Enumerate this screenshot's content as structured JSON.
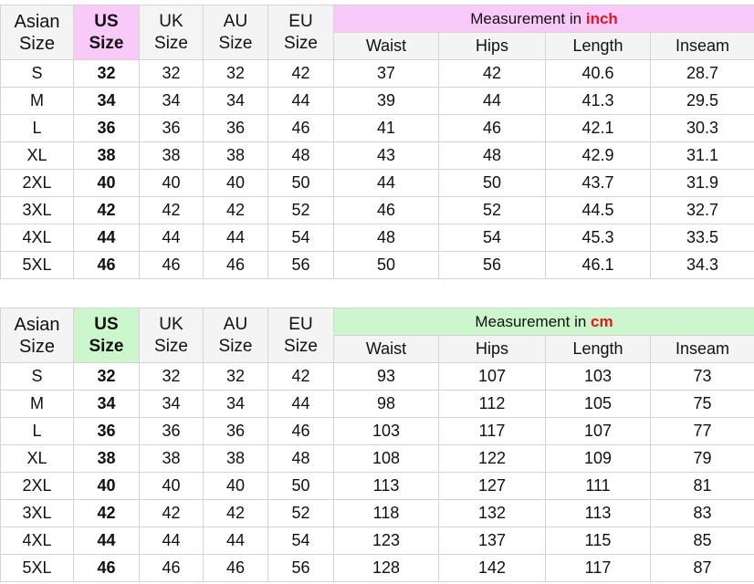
{
  "tables": [
    {
      "headers": [
        "Asian Size",
        "US Size",
        "UK Size",
        "AU Size",
        "EU Size"
      ],
      "measurement_prefix": "Measurement in",
      "unit": "inch",
      "subheaders": [
        "Waist",
        "Hips",
        "Length",
        "Inseam"
      ],
      "rows": [
        [
          "S",
          32,
          32,
          32,
          42,
          37,
          42,
          40.6,
          28.7
        ],
        [
          "M",
          34,
          34,
          34,
          44,
          39,
          44,
          41.3,
          29.5
        ],
        [
          "L",
          36,
          36,
          36,
          46,
          41,
          46,
          42.1,
          30.3
        ],
        [
          "XL",
          38,
          38,
          38,
          48,
          43,
          48,
          42.9,
          31.1
        ],
        [
          "2XL",
          40,
          40,
          40,
          50,
          44,
          50,
          43.7,
          31.9
        ],
        [
          "3XL",
          42,
          42,
          42,
          52,
          46,
          52,
          44.5,
          32.7
        ],
        [
          "4XL",
          44,
          44,
          44,
          54,
          48,
          54,
          45.3,
          33.5
        ],
        [
          "5XL",
          46,
          46,
          46,
          56,
          50,
          56,
          46.1,
          34.3
        ]
      ]
    },
    {
      "headers": [
        "Asian Size",
        "US Size",
        "UK Size",
        "AU Size",
        "EU Size"
      ],
      "measurement_prefix": "Measurement in",
      "unit": "cm",
      "subheaders": [
        "Waist",
        "Hips",
        "Length",
        "Inseam"
      ],
      "rows": [
        [
          "S",
          32,
          32,
          32,
          42,
          93,
          107,
          103,
          73
        ],
        [
          "M",
          34,
          34,
          34,
          44,
          98,
          112,
          105,
          75
        ],
        [
          "L",
          36,
          36,
          36,
          46,
          103,
          117,
          107,
          77
        ],
        [
          "XL",
          38,
          38,
          38,
          48,
          108,
          122,
          109,
          79
        ],
        [
          "2XL",
          40,
          40,
          40,
          50,
          113,
          127,
          111,
          81
        ],
        [
          "3XL",
          42,
          42,
          42,
          52,
          118,
          132,
          113,
          83
        ],
        [
          "4XL",
          44,
          44,
          44,
          54,
          123,
          137,
          115,
          85
        ],
        [
          "5XL",
          46,
          46,
          46,
          56,
          128,
          142,
          117,
          87
        ]
      ]
    }
  ]
}
